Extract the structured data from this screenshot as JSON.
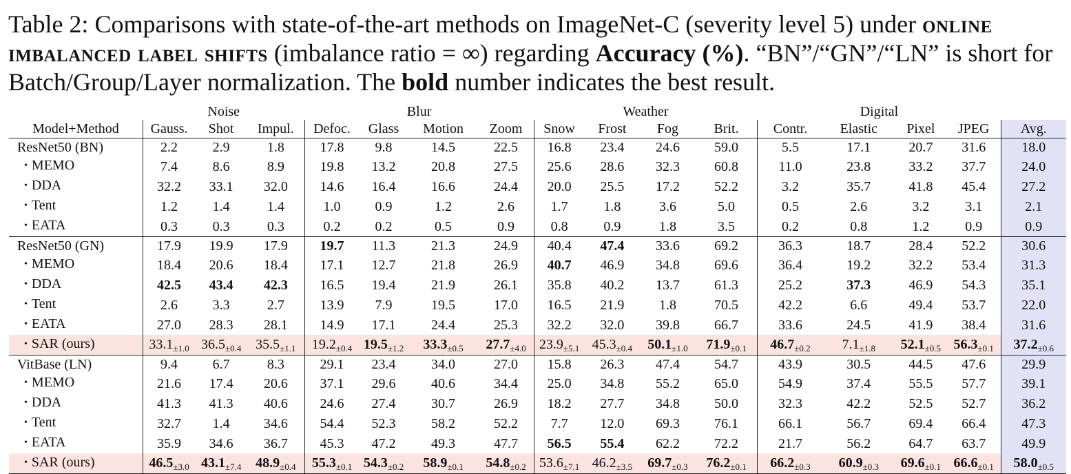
{
  "caption": {
    "prefix": "Table 2: Comparisons with state-of-the-art methods on ImageNet-C (severity level 5) under ",
    "setting_sc": "online imbalanced label shifts",
    "middle": " (imbalance ratio = ∞) regarding ",
    "metric": "Accuracy (%)",
    "after_metric": ". “BN”/“GN”/“LN” is short for Batch/Group/Layer normalization. The ",
    "bold_word": "bold",
    "suffix": " number indicates the best result."
  },
  "table": {
    "groups": [
      "Noise",
      "Blur",
      "Weather",
      "Digital"
    ],
    "header_first": "Model+Method",
    "columns": [
      "Gauss.",
      "Shot",
      "Impul.",
      "Defoc.",
      "Glass",
      "Motion",
      "Zoom",
      "Snow",
      "Frost",
      "Fog",
      "Brit.",
      "Contr.",
      "Elastic",
      "Pixel",
      "JPEG",
      "Avg."
    ],
    "bullet": "•",
    "sections": [
      {
        "model": "ResNet50 (BN)",
        "model_values": [
          "2.2",
          "2.9",
          "1.8",
          "17.8",
          "9.8",
          "14.5",
          "22.5",
          "16.8",
          "23.4",
          "24.6",
          "59.0",
          "5.5",
          "17.1",
          "20.7",
          "31.6",
          "18.0"
        ],
        "model_bold": [],
        "rows": [
          {
            "method": "MEMO",
            "values": [
              "7.4",
              "8.6",
              "8.9",
              "19.8",
              "13.2",
              "20.8",
              "27.5",
              "25.6",
              "28.6",
              "32.3",
              "60.8",
              "11.0",
              "23.8",
              "33.2",
              "37.7",
              "24.0"
            ],
            "bold": []
          },
          {
            "method": "DDA",
            "values": [
              "32.2",
              "33.1",
              "32.0",
              "14.6",
              "16.4",
              "16.6",
              "24.4",
              "20.0",
              "25.5",
              "17.2",
              "52.2",
              "3.2",
              "35.7",
              "41.8",
              "45.4",
              "27.2"
            ],
            "bold": []
          },
          {
            "method": "Tent",
            "values": [
              "1.2",
              "1.4",
              "1.4",
              "1.0",
              "0.9",
              "1.2",
              "2.6",
              "1.7",
              "1.8",
              "3.6",
              "5.0",
              "0.5",
              "2.6",
              "3.2",
              "3.1",
              "2.1"
            ],
            "bold": []
          },
          {
            "method": "EATA",
            "values": [
              "0.3",
              "0.3",
              "0.3",
              "0.2",
              "0.2",
              "0.5",
              "0.9",
              "0.8",
              "0.9",
              "1.8",
              "3.5",
              "0.2",
              "0.8",
              "1.2",
              "0.9",
              "0.9"
            ],
            "bold": []
          }
        ]
      },
      {
        "model": "ResNet50 (GN)",
        "model_values": [
          "17.9",
          "19.9",
          "17.9",
          "19.7",
          "11.3",
          "21.3",
          "24.9",
          "40.4",
          "47.4",
          "33.6",
          "69.2",
          "36.3",
          "18.7",
          "28.4",
          "52.2",
          "30.6"
        ],
        "model_bold": [
          3,
          8
        ],
        "rows": [
          {
            "method": "MEMO",
            "values": [
              "18.4",
              "20.6",
              "18.4",
              "17.1",
              "12.7",
              "21.8",
              "26.9",
              "40.7",
              "46.9",
              "34.8",
              "69.6",
              "36.4",
              "19.2",
              "32.2",
              "53.4",
              "31.3"
            ],
            "bold": [
              7
            ]
          },
          {
            "method": "DDA",
            "values": [
              "42.5",
              "43.4",
              "42.3",
              "16.5",
              "19.4",
              "21.9",
              "26.1",
              "35.8",
              "40.2",
              "13.7",
              "61.3",
              "25.2",
              "37.3",
              "46.9",
              "54.3",
              "35.1"
            ],
            "bold": [
              0,
              1,
              2,
              12
            ]
          },
          {
            "method": "Tent",
            "values": [
              "2.6",
              "3.3",
              "2.7",
              "13.9",
              "7.9",
              "19.5",
              "17.0",
              "16.5",
              "21.9",
              "1.8",
              "70.5",
              "42.2",
              "6.6",
              "49.4",
              "53.7",
              "22.0"
            ],
            "bold": []
          },
          {
            "method": "EATA",
            "values": [
              "27.0",
              "28.3",
              "28.1",
              "14.9",
              "17.1",
              "24.4",
              "25.3",
              "32.2",
              "32.0",
              "39.8",
              "66.7",
              "33.6",
              "24.5",
              "41.9",
              "38.4",
              "31.6"
            ],
            "bold": []
          },
          {
            "method": "SAR (ours)",
            "sar": true,
            "values": [
              "33.1",
              "36.5",
              "35.5",
              "19.2",
              "19.5",
              "33.3",
              "27.7",
              "23.9",
              "45.3",
              "50.1",
              "71.9",
              "46.7",
              "7.1",
              "52.1",
              "56.3",
              "37.2"
            ],
            "std": [
              "±1.0",
              "±0.4",
              "±1.1",
              "±0.4",
              "±1.2",
              "±0.5",
              "±4.0",
              "±5.1",
              "±0.4",
              "±1.0",
              "±0.1",
              "±0.2",
              "±1.8",
              "±0.5",
              "±0.1",
              "±0.6"
            ],
            "bold": [
              4,
              5,
              6,
              9,
              10,
              11,
              13,
              14,
              15
            ]
          }
        ]
      },
      {
        "model": "VitBase (LN)",
        "model_values": [
          "9.4",
          "6.7",
          "8.3",
          "29.1",
          "23.4",
          "34.0",
          "27.0",
          "15.8",
          "26.3",
          "47.4",
          "54.7",
          "43.9",
          "30.5",
          "44.5",
          "47.6",
          "29.9"
        ],
        "model_bold": [],
        "rows": [
          {
            "method": "MEMO",
            "values": [
              "21.6",
              "17.4",
              "20.6",
              "37.1",
              "29.6",
              "40.6",
              "34.4",
              "25.0",
              "34.8",
              "55.2",
              "65.0",
              "54.9",
              "37.4",
              "55.5",
              "57.7",
              "39.1"
            ],
            "bold": []
          },
          {
            "method": "DDA",
            "values": [
              "41.3",
              "41.3",
              "40.6",
              "24.6",
              "27.4",
              "30.7",
              "26.9",
              "18.2",
              "27.7",
              "34.8",
              "50.0",
              "32.3",
              "42.2",
              "52.5",
              "52.7",
              "36.2"
            ],
            "bold": []
          },
          {
            "method": "Tent",
            "values": [
              "32.7",
              "1.4",
              "34.6",
              "54.4",
              "52.3",
              "58.2",
              "52.2",
              "7.7",
              "12.0",
              "69.3",
              "76.1",
              "66.1",
              "56.7",
              "69.4",
              "66.4",
              "47.3"
            ],
            "bold": []
          },
          {
            "method": "EATA",
            "values": [
              "35.9",
              "34.6",
              "36.7",
              "45.3",
              "47.2",
              "49.3",
              "47.7",
              "56.5",
              "55.4",
              "62.2",
              "72.2",
              "21.7",
              "56.2",
              "64.7",
              "63.7",
              "49.9"
            ],
            "bold": [
              7,
              8
            ]
          },
          {
            "method": "SAR (ours)",
            "sar": true,
            "values": [
              "46.5",
              "43.1",
              "48.9",
              "55.3",
              "54.3",
              "58.9",
              "54.8",
              "53.6",
              "46.2",
              "69.7",
              "76.2",
              "66.2",
              "60.9",
              "69.6",
              "66.6",
              "58.0"
            ],
            "std": [
              "±3.0",
              "±7.4",
              "±0.4",
              "±0.1",
              "±0.2",
              "±0.1",
              "±0.2",
              "±7.1",
              "±3.5",
              "±0.3",
              "±0.1",
              "±0.3",
              "±0.3",
              "±0.1",
              "±0.1",
              "±0.5"
            ],
            "bold": [
              0,
              1,
              2,
              3,
              4,
              5,
              6,
              9,
              10,
              11,
              12,
              13,
              14,
              15
            ]
          }
        ]
      }
    ]
  }
}
